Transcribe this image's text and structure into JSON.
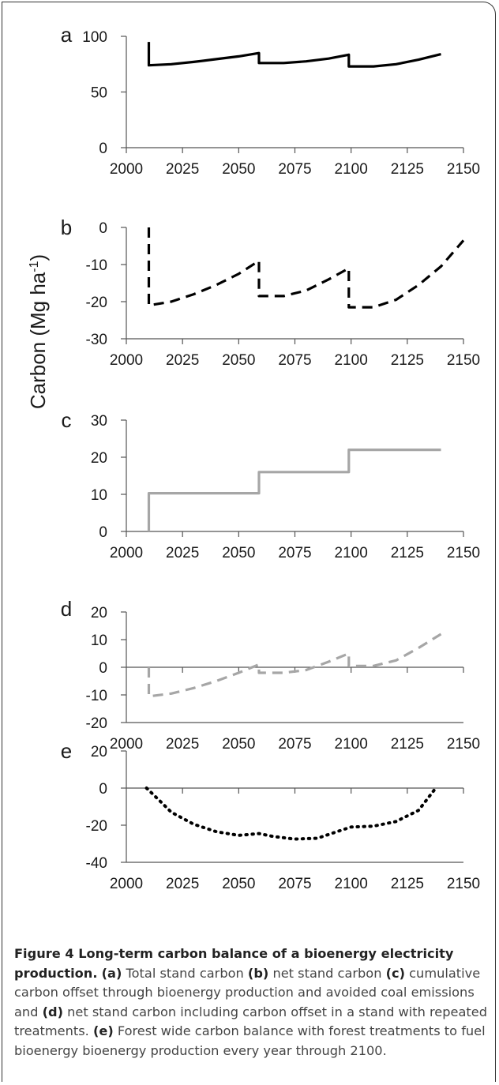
{
  "chart_data": [
    {
      "type": "line",
      "panel": "a",
      "ylim": [
        0,
        100
      ],
      "yticks": [
        0,
        50,
        100
      ],
      "xlim": [
        2000,
        2150
      ],
      "xticks": [
        2000,
        2025,
        2050,
        2075,
        2100,
        2125,
        2150
      ],
      "series": [
        {
          "style": "solid",
          "color": "#000000",
          "points": [
            [
              2010,
              95
            ],
            [
              2010,
              74
            ],
            [
              2020,
              75
            ],
            [
              2030,
              77
            ],
            [
              2040,
              79.5
            ],
            [
              2050,
              82
            ],
            [
              2059,
              85
            ],
            [
              2059,
              76
            ],
            [
              2070,
              76
            ],
            [
              2080,
              77.5
            ],
            [
              2090,
              80
            ],
            [
              2099,
              83.5
            ],
            [
              2099,
              73
            ],
            [
              2110,
              73
            ],
            [
              2120,
              75
            ],
            [
              2130,
              79
            ],
            [
              2140,
              84
            ]
          ]
        }
      ]
    },
    {
      "type": "line",
      "panel": "b",
      "ylim": [
        -30,
        0
      ],
      "yticks": [
        -30,
        -20,
        -10,
        0
      ],
      "xlim": [
        2000,
        2150
      ],
      "xticks": [
        2000,
        2025,
        2050,
        2075,
        2100,
        2125,
        2150
      ],
      "series": [
        {
          "style": "dashed",
          "color": "#000000",
          "points": [
            [
              2010,
              0
            ],
            [
              2010,
              -21
            ],
            [
              2020,
              -20
            ],
            [
              2030,
              -18
            ],
            [
              2040,
              -15.5
            ],
            [
              2050,
              -12.5
            ],
            [
              2059,
              -9
            ],
            [
              2059,
              -18.5
            ],
            [
              2070,
              -18.5
            ],
            [
              2080,
              -17
            ],
            [
              2090,
              -14
            ],
            [
              2099,
              -11
            ],
            [
              2099,
              -21.5
            ],
            [
              2110,
              -21.5
            ],
            [
              2120,
              -19.5
            ],
            [
              2130,
              -15.5
            ],
            [
              2140,
              -10.5
            ],
            [
              2150,
              -3.5
            ]
          ]
        }
      ]
    },
    {
      "type": "line",
      "panel": "c",
      "ylim": [
        0,
        30
      ],
      "yticks": [
        0,
        10,
        20,
        30
      ],
      "xlim": [
        2000,
        2150
      ],
      "xticks": [
        2000,
        2025,
        2050,
        2075,
        2100,
        2125,
        2150
      ],
      "series": [
        {
          "style": "solid",
          "color": "#a6a6a6",
          "points": [
            [
              2010,
              0
            ],
            [
              2010,
              10.3
            ],
            [
              2059,
              10.3
            ],
            [
              2059,
              16
            ],
            [
              2099,
              16
            ],
            [
              2099,
              22
            ],
            [
              2140,
              22
            ]
          ]
        }
      ]
    },
    {
      "type": "line",
      "panel": "d",
      "ylim": [
        -20,
        20
      ],
      "yticks": [
        -20,
        -10,
        0,
        10,
        20
      ],
      "xlim": [
        2000,
        2150
      ],
      "xticks": [
        2000,
        2025,
        2050,
        2075,
        2100,
        2125,
        2150
      ],
      "zero_axis": true,
      "series": [
        {
          "style": "dashed",
          "color": "#a6a6a6",
          "points": [
            [
              2010,
              0
            ],
            [
              2010,
              -10.5
            ],
            [
              2020,
              -9.5
            ],
            [
              2030,
              -7.5
            ],
            [
              2040,
              -5
            ],
            [
              2050,
              -2
            ],
            [
              2059,
              1
            ],
            [
              2059,
              -2
            ],
            [
              2070,
              -2
            ],
            [
              2080,
              -1
            ],
            [
              2090,
              2
            ],
            [
              2099,
              5
            ],
            [
              2099,
              0.5
            ],
            [
              2110,
              0.5
            ],
            [
              2120,
              2.5
            ],
            [
              2130,
              7
            ],
            [
              2140,
              12
            ]
          ]
        }
      ]
    },
    {
      "type": "line",
      "panel": "e",
      "ylim": [
        -40,
        20
      ],
      "yticks": [
        -40,
        -20,
        0,
        20
      ],
      "xlim": [
        2000,
        2150
      ],
      "xticks": [
        2000,
        2025,
        2050,
        2075,
        2100,
        2125,
        2150
      ],
      "zero_axis": true,
      "series": [
        {
          "style": "dotted",
          "color": "#000000",
          "points": [
            [
              2009,
              0
            ],
            [
              2015,
              -7
            ],
            [
              2020,
              -13
            ],
            [
              2030,
              -19.5
            ],
            [
              2040,
              -23.5
            ],
            [
              2050,
              -25.5
            ],
            [
              2059,
              -24.5
            ],
            [
              2065,
              -26
            ],
            [
              2075,
              -27.5
            ],
            [
              2085,
              -27
            ],
            [
              2095,
              -23
            ],
            [
              2100,
              -21
            ],
            [
              2110,
              -20.5
            ],
            [
              2120,
              -18
            ],
            [
              2130,
              -12
            ],
            [
              2137,
              -1
            ]
          ]
        }
      ]
    }
  ],
  "ylabel": {
    "main": "Carbon (Mg ha",
    "superscript": "-1",
    "close": ")"
  },
  "caption": {
    "title": "Figure 4 Long-term carbon balance of a bioenergy electricity production.",
    "parts": [
      {
        "bold": true,
        "text": "(a)"
      },
      {
        "bold": false,
        "text": " Total stand carbon "
      },
      {
        "bold": true,
        "text": "(b)"
      },
      {
        "bold": false,
        "text": " net stand carbon "
      },
      {
        "bold": true,
        "text": "(c)"
      },
      {
        "bold": false,
        "text": " cumulative carbon offset through bioenergy production and avoided coal emissions and "
      },
      {
        "bold": true,
        "text": "(d)"
      },
      {
        "bold": false,
        "text": " net stand carbon including carbon offset in a stand with repeated treatments. "
      },
      {
        "bold": true,
        "text": "(e)"
      },
      {
        "bold": false,
        "text": " Forest wide carbon balance with forest treatments to fuel bioenergy bioenergy production every year through 2100."
      }
    ]
  }
}
